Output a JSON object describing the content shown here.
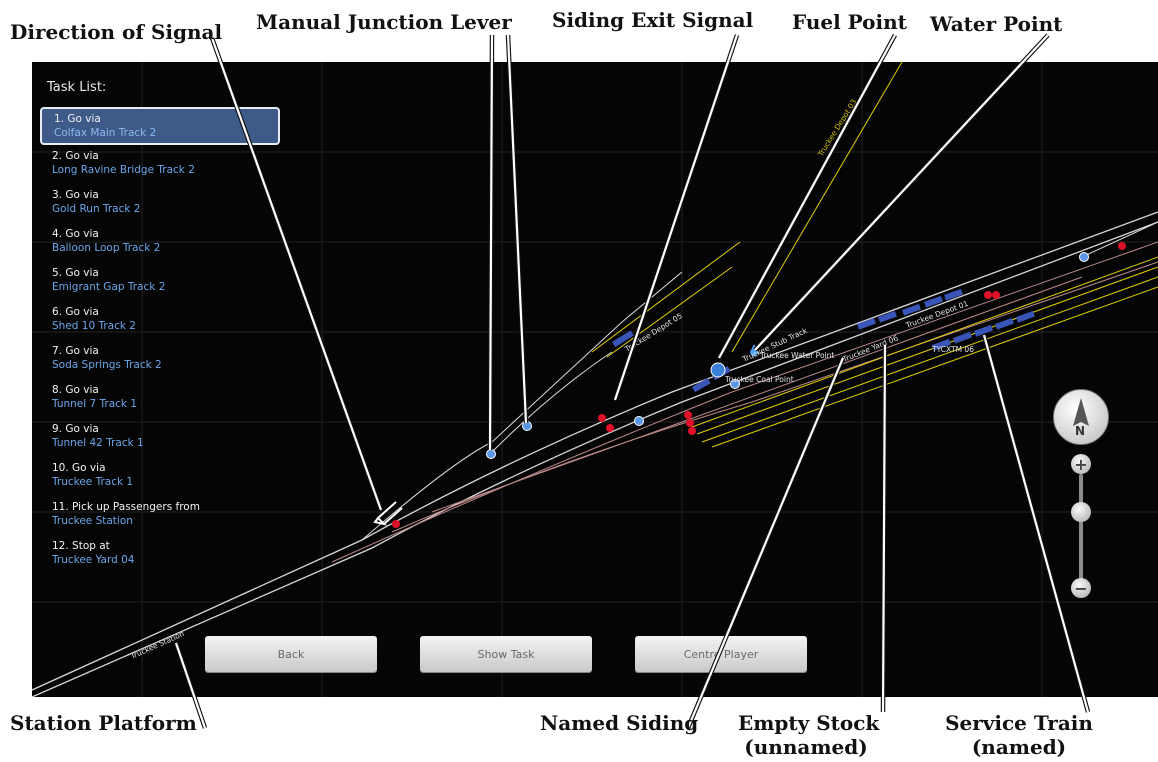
{
  "task_list": {
    "title": "Task List:",
    "items": [
      {
        "action": "1. Go via",
        "target": "Colfax Main Track 2",
        "active": true
      },
      {
        "action": "2. Go via",
        "target": "Long Ravine Bridge Track 2"
      },
      {
        "action": "3. Go via",
        "target": "Gold Run Track 2"
      },
      {
        "action": "4. Go via",
        "target": "Balloon Loop Track 2"
      },
      {
        "action": "5. Go via",
        "target": "Emigrant Gap Track 2"
      },
      {
        "action": "6. Go via",
        "target": "Shed 10 Track 2"
      },
      {
        "action": "7. Go via",
        "target": "Soda Springs Track 2"
      },
      {
        "action": "8. Go via",
        "target": "Tunnel 7 Track 1"
      },
      {
        "action": "9. Go via",
        "target": "Tunnel 42 Track 1"
      },
      {
        "action": "10. Go via",
        "target": "Truckee Track 1"
      },
      {
        "action": "11. Pick up Passengers from",
        "target": "Truckee Station"
      },
      {
        "action": "12. Stop at",
        "target": "Truckee Yard 04"
      }
    ]
  },
  "map_labels": {
    "station": "Truckee Station",
    "depot03": "Truckee Depot 03",
    "depot05": "Truckee Depot 05",
    "depot01": "Truckee Depot 01",
    "stub": "Truckee Stub Track",
    "water": "Truckee Water Point",
    "coal": "Truckee Coal Point",
    "yard06": "Truckee Yard 06",
    "train": "TYCXTM 06"
  },
  "buttons": {
    "back": "Back",
    "show_task": "Show Task",
    "centre_player": "Centre Player"
  },
  "compass": {
    "letter": "N"
  },
  "zoom": {
    "plus": "+",
    "minus": "−",
    "level": 0.5
  },
  "callouts": {
    "direction_of_signal": "Direction of Signal",
    "manual_junction_lever": "Manual Junction Lever",
    "siding_exit_signal": "Siding Exit Signal",
    "fuel_point": "Fuel Point",
    "water_point": "Water Point",
    "station_platform": "Station Platform",
    "named_siding": "Named Siding",
    "empty_stock_1": "Empty Stock",
    "empty_stock_2": "(unnamed)",
    "service_train_1": "Service Train",
    "service_train_2": "(named)"
  },
  "colors": {
    "map_bg": "#050505",
    "track": "#d8d8d8",
    "siding": "#e0d000",
    "signal_red": "#e0102a",
    "lever_blue": "#5a98e6",
    "task_active": "#3d5a88",
    "task_link": "#6aa6ea"
  }
}
